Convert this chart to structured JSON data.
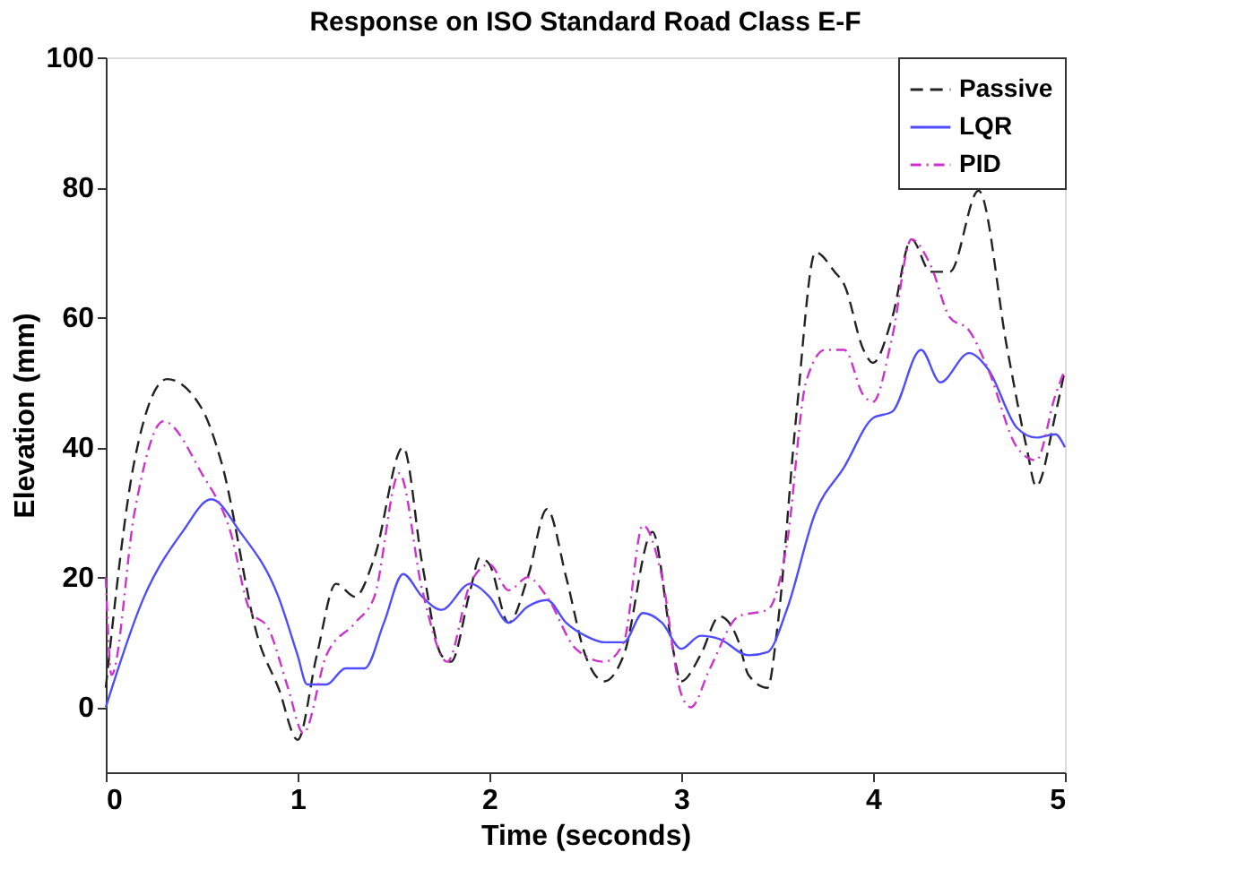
{
  "chart_data": {
    "type": "line",
    "title": "Response on ISO Standard Road Class E-F",
    "xlabel": "Time (seconds)",
    "ylabel": "Elevation (mm)",
    "xlim": [
      0,
      5
    ],
    "xticks": [
      0,
      1,
      2,
      3,
      4,
      5
    ],
    "ylim": [
      -10,
      100
    ],
    "yticks": [
      0,
      20,
      40,
      60,
      80,
      100
    ],
    "grid": false,
    "legend": "top right",
    "marker": "none",
    "series": [
      {
        "name": "Passive",
        "color": "#222222",
        "line_style": "dashed",
        "x": [
          0,
          0.15,
          0.32,
          0.5,
          0.6,
          0.8,
          0.9,
          1.0,
          1.1,
          1.2,
          1.3,
          1.4,
          1.55,
          1.65,
          1.75,
          1.8,
          1.9,
          1.95,
          2.0,
          2.1,
          2.2,
          2.3,
          2.4,
          2.5,
          2.6,
          2.7,
          2.85,
          2.95,
          3.0,
          3.1,
          3.2,
          3.3,
          3.35,
          3.45,
          3.5,
          3.6,
          3.7,
          3.8,
          3.85,
          3.95,
          4.0,
          4.1,
          4.2,
          4.3,
          4.4,
          4.55,
          4.7,
          4.8,
          4.85,
          4.95,
          5.0
        ],
        "values": [
          3,
          38,
          50.5,
          46,
          38,
          10,
          3,
          -5,
          8,
          19,
          17,
          23,
          40,
          22,
          8,
          7,
          18,
          23,
          22,
          13,
          20,
          30.5,
          20,
          8,
          4,
          8,
          27,
          10,
          4,
          8,
          14,
          10,
          5,
          3,
          12,
          45,
          70,
          67,
          65,
          55,
          53,
          60,
          72,
          67,
          67,
          79.5,
          55,
          40,
          34,
          45,
          52
        ]
      },
      {
        "name": "LQR",
        "color": "#4d4dff",
        "line_style": "solid",
        "x": [
          0,
          0.2,
          0.4,
          0.55,
          0.7,
          0.9,
          1.0,
          1.05,
          1.15,
          1.25,
          1.35,
          1.45,
          1.55,
          1.65,
          1.75,
          1.9,
          2.0,
          2.1,
          2.2,
          2.3,
          2.4,
          2.5,
          2.6,
          2.7,
          2.8,
          2.9,
          3.0,
          3.1,
          3.2,
          3.35,
          3.45,
          3.55,
          3.7,
          3.85,
          4.0,
          4.1,
          4.25,
          4.35,
          4.5,
          4.6,
          4.75,
          4.85,
          4.95,
          5.0
        ],
        "values": [
          0,
          17,
          27,
          32,
          27,
          17,
          8,
          3.5,
          3.5,
          6,
          6,
          13,
          20.5,
          17,
          15,
          19,
          17,
          13,
          15.5,
          16.5,
          13,
          11,
          10,
          10,
          14.5,
          13,
          9,
          11,
          10.5,
          8,
          8.5,
          15,
          30,
          37,
          44.5,
          45.5,
          55,
          50,
          54.5,
          52,
          43,
          41.5,
          42,
          40
        ]
      },
      {
        "name": "PID",
        "color": "#cc33cc",
        "line_style": "dotted",
        "x": [
          0,
          0.03,
          0.15,
          0.3,
          0.5,
          0.65,
          0.75,
          0.85,
          0.95,
          1.03,
          1.15,
          1.3,
          1.4,
          1.53,
          1.65,
          1.78,
          1.9,
          2.0,
          2.1,
          2.2,
          2.3,
          2.45,
          2.6,
          2.7,
          2.8,
          2.9,
          3.0,
          3.05,
          3.15,
          3.3,
          3.45,
          3.55,
          3.65,
          3.75,
          3.85,
          3.95,
          4.0,
          4.1,
          4.2,
          4.3,
          4.4,
          4.5,
          4.6,
          4.75,
          4.85,
          4.95,
          5.0
        ],
        "values": [
          20,
          5,
          30,
          44,
          36,
          27,
          15,
          12,
          3,
          -4,
          8,
          13,
          17,
          36,
          18,
          7,
          19,
          22,
          18,
          20,
          17,
          9,
          7,
          10,
          28,
          20,
          2,
          0,
          6,
          14,
          15,
          25,
          50,
          55,
          55,
          48,
          47,
          57,
          72,
          68,
          60,
          58,
          52,
          40,
          38,
          48,
          52
        ]
      }
    ]
  }
}
